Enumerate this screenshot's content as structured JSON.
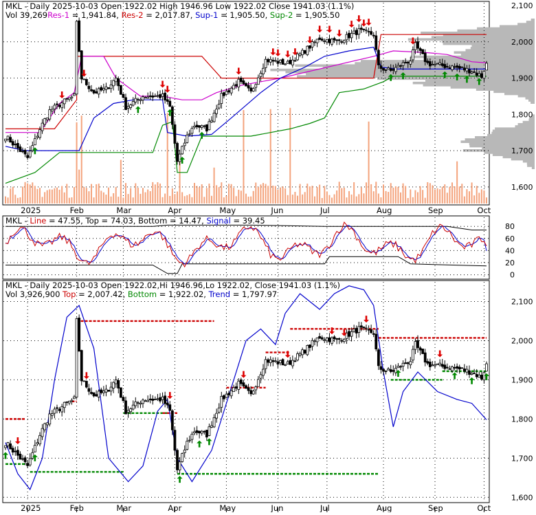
{
  "chart_data": [
    {
      "type": "candlestick",
      "panel": "price",
      "header": [
        {
          "text": "MKL - Daily 2025-10-03 Open 1922.02  High 1946.96  Low 1922.02  Close 1941.03 (1.1%)",
          "color": "#000000"
        },
        {
          "text": "Vol 39,269",
          "color": "#000000"
        },
        {
          "text": "Res-1",
          "color": "#cc00cc"
        },
        {
          "text": " = 1,941.84, ",
          "color": "#000000"
        },
        {
          "text": "Res-2",
          "color": "#cc0000"
        },
        {
          "text": " = 2,017.87, ",
          "color": "#000000"
        },
        {
          "text": "Sup-1",
          "color": "#0000cc"
        },
        {
          "text": " = 1,905.50, ",
          "color": "#000000"
        },
        {
          "text": "Sup-2",
          "color": "#008800"
        },
        {
          "text": " = 1,905.50",
          "color": "#000000"
        }
      ],
      "ylim": [
        1560,
        2100
      ],
      "yticks": [
        "1,600",
        "1,700",
        "1,800",
        "1,900",
        "2,000",
        "2,100"
      ],
      "ytick_values": [
        1600,
        1700,
        1800,
        1900,
        2000,
        2100
      ],
      "xticks": [
        "2025",
        "Feb",
        "Mar",
        "Apr",
        "May",
        "Jun",
        "Jul",
        "Aug",
        "Sep",
        "Oct"
      ],
      "xtick_bars": [
        9,
        29,
        48,
        69,
        90,
        111,
        131,
        154,
        175,
        195
      ],
      "n_bars": 197,
      "anchors": [
        [
          0,
          1740
        ],
        [
          9,
          1680
        ],
        [
          14,
          1760
        ],
        [
          18,
          1810
        ],
        [
          25,
          1840
        ],
        [
          28,
          1850
        ],
        [
          29,
          2050
        ],
        [
          31,
          1900
        ],
        [
          36,
          1860
        ],
        [
          41,
          1870
        ],
        [
          45,
          1900
        ],
        [
          49,
          1820
        ],
        [
          56,
          1850
        ],
        [
          64,
          1850
        ],
        [
          67,
          1820
        ],
        [
          70,
          1670
        ],
        [
          74,
          1740
        ],
        [
          77,
          1770
        ],
        [
          82,
          1760
        ],
        [
          88,
          1850
        ],
        [
          95,
          1890
        ],
        [
          100,
          1860
        ],
        [
          106,
          1950
        ],
        [
          115,
          1940
        ],
        [
          121,
          1970
        ],
        [
          128,
          2010
        ],
        [
          135,
          2000
        ],
        [
          144,
          2030
        ],
        [
          150,
          2020
        ],
        [
          152,
          1930
        ],
        [
          157,
          1920
        ],
        [
          165,
          1950
        ],
        [
          167,
          1990
        ],
        [
          172,
          1940
        ],
        [
          183,
          1930
        ],
        [
          190,
          1920
        ],
        [
          194,
          1905
        ],
        [
          196,
          1941
        ]
      ],
      "down_arrows": [
        23,
        32,
        64,
        66,
        95,
        109,
        111,
        115,
        118,
        124,
        128,
        132,
        136,
        141,
        144,
        146,
        148,
        166
      ],
      "up_arrows": [
        12,
        54,
        67,
        72,
        80,
        157,
        162,
        179,
        184,
        188,
        193
      ],
      "resistance_1_value": 1941.84,
      "resistance_2_value": 2017.87,
      "support_1_value": 1905.5,
      "support_2_value": 1905.5,
      "colors": {
        "up": "#000000",
        "down": "#000000",
        "volume": "#f4a37c",
        "res1": "#cc00cc",
        "res2": "#cc0000",
        "sup1": "#0000cc",
        "sup2": "#008800",
        "profile": "#b8b8b8"
      }
    },
    {
      "type": "line",
      "panel": "stochastic",
      "header": [
        {
          "text": "MKL - ",
          "color": "#000000"
        },
        {
          "text": "Line",
          "color": "#cc0000"
        },
        {
          "text": " = 47.55, ",
          "color": "#000000"
        },
        {
          "text": "Top",
          "color": "#000000"
        },
        {
          "text": " = 74.03, ",
          "color": "#000000"
        },
        {
          "text": "Bottom",
          "color": "#000000"
        },
        {
          "text": " = 14.47, ",
          "color": "#000000"
        },
        {
          "text": "Signal",
          "color": "#0000cc"
        },
        {
          "text": " = 39.45",
          "color": "#000000"
        }
      ],
      "ylim": [
        -5,
        95
      ],
      "yticks": [
        "0",
        "20",
        "40",
        "60",
        "80"
      ],
      "ytick_values": [
        0,
        20,
        40,
        60,
        80
      ],
      "line_value": 47.55,
      "signal_value": 39.45,
      "top_value": 74.03,
      "bottom_value": 14.47
    },
    {
      "type": "candlestick",
      "panel": "trend",
      "header": [
        {
          "text": "MKL - Daily 2025-10-03 Open 1922.02,Hi 1946.96,Lo 1922.02, Close 1941.03 (1.1%)",
          "color": "#000000"
        },
        {
          "text": "Vol 3,926,900 ",
          "color": "#000000"
        },
        {
          "text": "Top",
          "color": "#cc0000"
        },
        {
          "text": " = 2,007.42, ",
          "color": "#000000"
        },
        {
          "text": "Bottom",
          "color": "#008800"
        },
        {
          "text": " = 1,922.02, ",
          "color": "#000000"
        },
        {
          "text": "Trend",
          "color": "#0000cc"
        },
        {
          "text": " = 1,797.97",
          "color": "#000000"
        }
      ],
      "ylim": [
        1590,
        2150
      ],
      "yticks": [
        "1,600",
        "1,700",
        "1,800",
        "1,900",
        "2,000",
        "2,100"
      ],
      "ytick_values": [
        1600,
        1700,
        1800,
        1900,
        2000,
        2100
      ],
      "top_value": 2007.42,
      "bottom_value": 1922.02,
      "trend_value": 1797.97,
      "down_arrows": [
        5,
        33,
        67,
        97,
        115,
        133,
        138,
        147,
        177
      ],
      "up_arrows": [
        0,
        12,
        71,
        79,
        83,
        160,
        183,
        190,
        196
      ]
    }
  ]
}
